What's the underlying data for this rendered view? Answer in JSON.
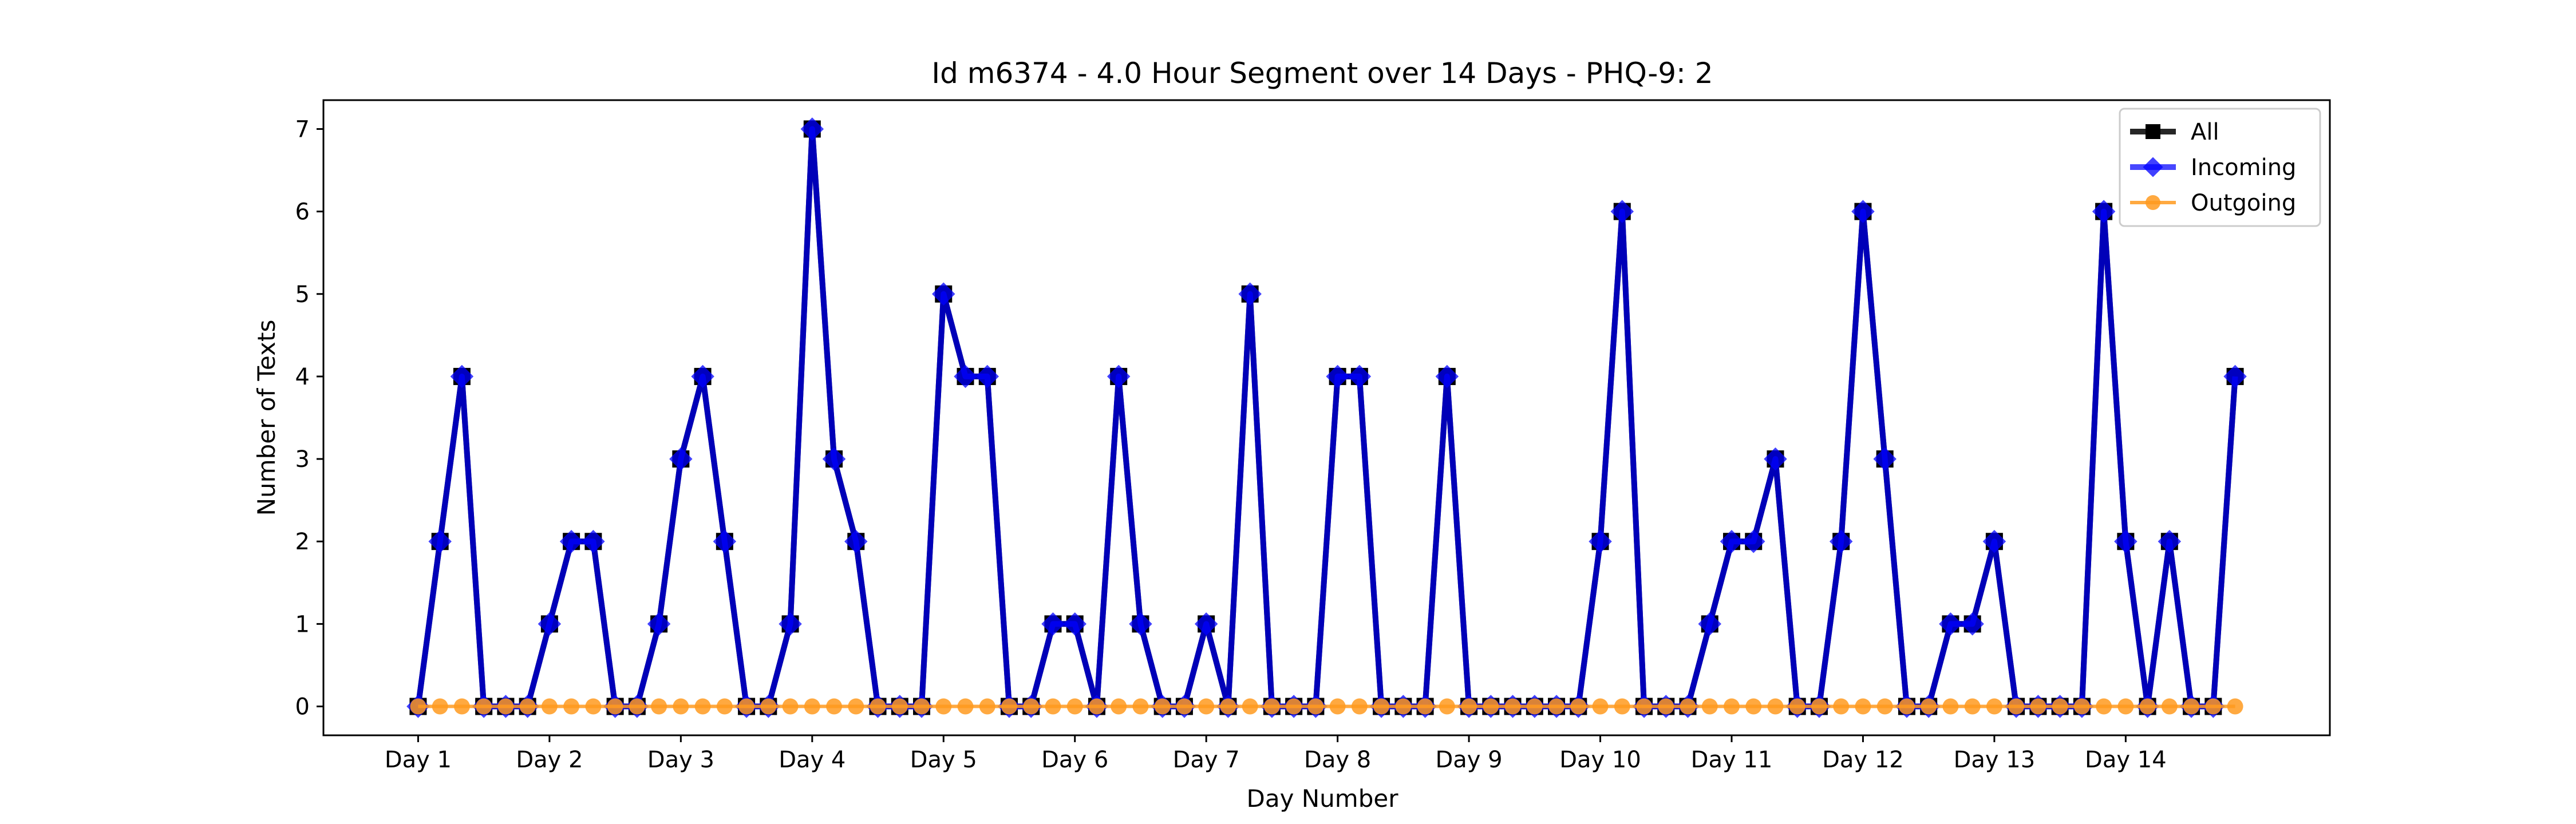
{
  "chart_data": {
    "type": "line",
    "title": "Id m6374 - 4.0 Hour Segment over 14 Days - PHQ-9: 2",
    "xlabel": "Day Number",
    "ylabel": "Number of Texts",
    "ylim": [
      -0.35,
      7.35
    ],
    "yticks": [
      0,
      1,
      2,
      3,
      4,
      5,
      6,
      7
    ],
    "xticks": [
      {
        "pos": 0,
        "label": "Day 1"
      },
      {
        "pos": 6,
        "label": "Day 2"
      },
      {
        "pos": 12,
        "label": "Day 3"
      },
      {
        "pos": 18,
        "label": "Day 4"
      },
      {
        "pos": 24,
        "label": "Day 5"
      },
      {
        "pos": 30,
        "label": "Day 6"
      },
      {
        "pos": 36,
        "label": "Day 7"
      },
      {
        "pos": 42,
        "label": "Day 8"
      },
      {
        "pos": 48,
        "label": "Day 9"
      },
      {
        "pos": 54,
        "label": "Day 10"
      },
      {
        "pos": 60,
        "label": "Day 11"
      },
      {
        "pos": 66,
        "label": "Day 12"
      },
      {
        "pos": 72,
        "label": "Day 13"
      },
      {
        "pos": 78,
        "label": "Day 14"
      }
    ],
    "legend_position": "top-right",
    "series": [
      {
        "name": "All",
        "color": "#000000",
        "marker": "square",
        "values": [
          0,
          2,
          4,
          0,
          0,
          0,
          1,
          2,
          2,
          0,
          0,
          1,
          3,
          4,
          2,
          0,
          0,
          1,
          7,
          3,
          2,
          0,
          0,
          0,
          5,
          4,
          4,
          0,
          0,
          1,
          1,
          0,
          4,
          1,
          0,
          0,
          1,
          0,
          5,
          0,
          0,
          0,
          4,
          4,
          0,
          0,
          0,
          4,
          0,
          0,
          0,
          0,
          0,
          0,
          2,
          6,
          0,
          0,
          0,
          1,
          2,
          2,
          3,
          0,
          0,
          2,
          6,
          3,
          0,
          0,
          1,
          1,
          2,
          0,
          0,
          0,
          0,
          6,
          2,
          0,
          2,
          0,
          0,
          4
        ]
      },
      {
        "name": "Incoming",
        "color": "#0000ff",
        "marker": "diamond",
        "values": [
          0,
          2,
          4,
          0,
          0,
          0,
          1,
          2,
          2,
          0,
          0,
          1,
          3,
          4,
          2,
          0,
          0,
          1,
          7,
          3,
          2,
          0,
          0,
          0,
          5,
          4,
          4,
          0,
          0,
          1,
          1,
          0,
          4,
          1,
          0,
          0,
          1,
          0,
          5,
          0,
          0,
          0,
          4,
          4,
          0,
          0,
          0,
          4,
          0,
          0,
          0,
          0,
          0,
          0,
          2,
          6,
          0,
          0,
          0,
          1,
          2,
          2,
          3,
          0,
          0,
          2,
          6,
          3,
          0,
          0,
          1,
          1,
          2,
          0,
          0,
          0,
          0,
          6,
          2,
          0,
          2,
          0,
          0,
          4
        ]
      },
      {
        "name": "Outgoing",
        "color": "#ff9a1f",
        "marker": "circle",
        "values": [
          0,
          0,
          0,
          0,
          0,
          0,
          0,
          0,
          0,
          0,
          0,
          0,
          0,
          0,
          0,
          0,
          0,
          0,
          0,
          0,
          0,
          0,
          0,
          0,
          0,
          0,
          0,
          0,
          0,
          0,
          0,
          0,
          0,
          0,
          0,
          0,
          0,
          0,
          0,
          0,
          0,
          0,
          0,
          0,
          0,
          0,
          0,
          0,
          0,
          0,
          0,
          0,
          0,
          0,
          0,
          0,
          0,
          0,
          0,
          0,
          0,
          0,
          0,
          0,
          0,
          0,
          0,
          0,
          0,
          0,
          0,
          0,
          0,
          0,
          0,
          0,
          0,
          0,
          0,
          0,
          0,
          0,
          0,
          0
        ]
      }
    ]
  }
}
